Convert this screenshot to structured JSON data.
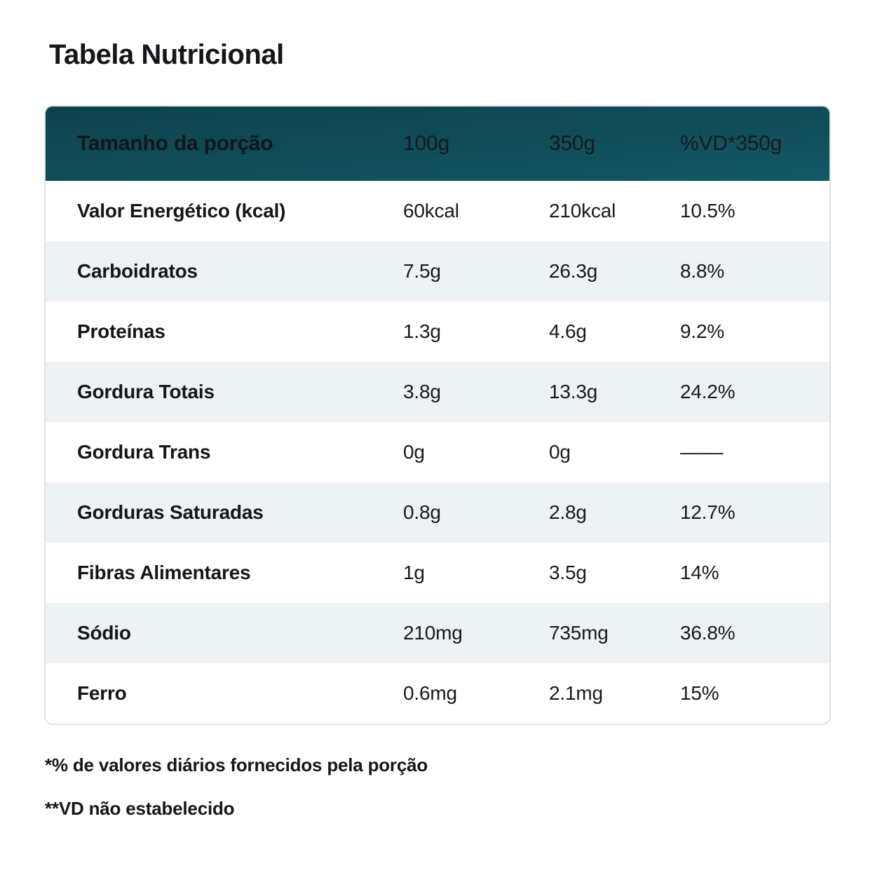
{
  "page": {
    "title": "Tabela Nutricional",
    "footnotes": {
      "daily_values": "*% de valores diários fornecidos pela porção",
      "vd_not_established": "**VD não estabelecido"
    }
  },
  "table": {
    "header": {
      "serving_label": "Tamanho da porção",
      "col_100g": "100g",
      "col_350g": "350g",
      "col_vd": "%VD*350g"
    },
    "rows": [
      {
        "label": "Valor Energético (kcal)",
        "per100": "60kcal",
        "per350": "210kcal",
        "vd": "10.5%"
      },
      {
        "label": "Carboidratos",
        "per100": "7.5g",
        "per350": "26.3g",
        "vd": "8.8%"
      },
      {
        "label": "Proteínas",
        "per100": "1.3g",
        "per350": "4.6g",
        "vd": "9.2%"
      },
      {
        "label": "Gordura Totais",
        "per100": "3.8g",
        "per350": "13.3g",
        "vd": "24.2%"
      },
      {
        "label": "Gordura Trans",
        "per100": "0g",
        "per350": "0g",
        "vd": "––––"
      },
      {
        "label": "Gorduras Saturadas",
        "per100": "0.8g",
        "per350": "2.8g",
        "vd": "12.7%"
      },
      {
        "label": "Fibras Alimentares",
        "per100": "1g",
        "per350": "3.5g",
        "vd": "14%"
      },
      {
        "label": "Sódio",
        "per100": "210mg",
        "per350": "735mg",
        "vd": "36.8%"
      },
      {
        "label": "Ferro",
        "per100": "0.6mg",
        "per350": "2.1mg",
        "vd": "15%"
      }
    ],
    "colors": {
      "header_bg_top": "#0c414c",
      "header_bg_bottom": "#135865",
      "header_text": "#ffffff",
      "row_bg": "#ffffff",
      "row_alt_bg": "#edf2f4",
      "body_text": "#15181b",
      "border": "#dde2e5"
    }
  }
}
